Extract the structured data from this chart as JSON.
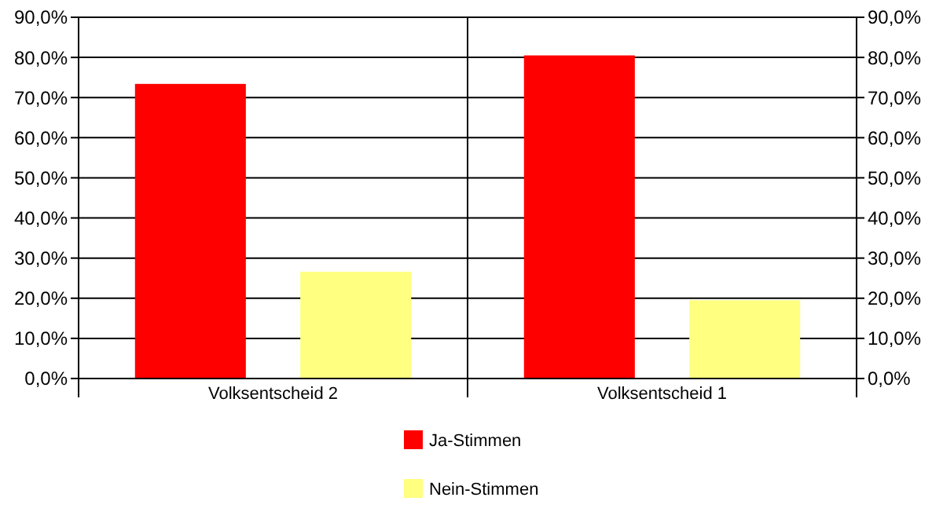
{
  "chart_data": {
    "type": "bar",
    "categories": [
      "Volksentscheid 2",
      "Volksentscheid 1"
    ],
    "series": [
      {
        "name": "Ja-Stimmen",
        "color": "#ff0000",
        "values": [
          73.4,
          80.5
        ]
      },
      {
        "name": "Nein-Stimmen",
        "color": "#ffff80",
        "values": [
          26.6,
          19.5
        ]
      }
    ],
    "ylim": [
      0,
      90
    ],
    "yticks": [
      {
        "value": 0,
        "label": "0,0%"
      },
      {
        "value": 10,
        "label": "10,0%"
      },
      {
        "value": 20,
        "label": "20,0%"
      },
      {
        "value": 30,
        "label": "30,0%"
      },
      {
        "value": 40,
        "label": "40,0%"
      },
      {
        "value": 50,
        "label": "50,0%"
      },
      {
        "value": 60,
        "label": "60,0%"
      },
      {
        "value": 70,
        "label": "70,0%"
      },
      {
        "value": 80,
        "label": "80,0%"
      },
      {
        "value": 90,
        "label": "90,0%"
      }
    ],
    "y2lim": [
      0,
      90
    ],
    "y2ticks": [
      {
        "value": 0,
        "label": "0,0%"
      },
      {
        "value": 10,
        "label": "10,0%"
      },
      {
        "value": 20,
        "label": "20,0%"
      },
      {
        "value": 30,
        "label": "30,0%"
      },
      {
        "value": 40,
        "label": "40,0%"
      },
      {
        "value": 50,
        "label": "50,0%"
      },
      {
        "value": 60,
        "label": "60,0%"
      },
      {
        "value": 70,
        "label": "70,0%"
      },
      {
        "value": 80,
        "label": "80,0%"
      },
      {
        "value": 90,
        "label": "90,0%"
      }
    ],
    "grid": "y",
    "legend": "bottom"
  }
}
